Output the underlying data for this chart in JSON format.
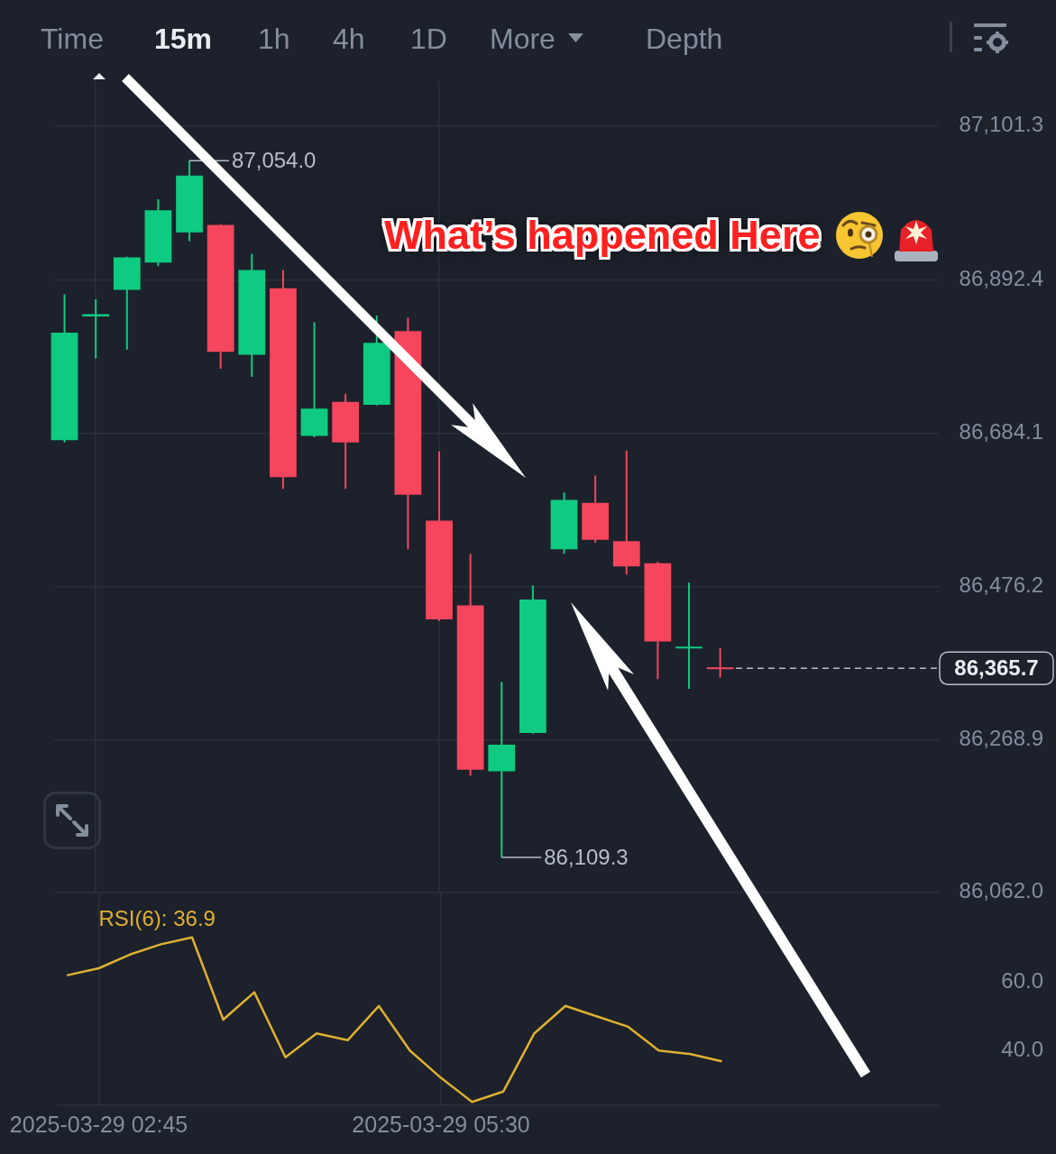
{
  "chart_data": [
    {
      "type": "other",
      "annotations": [
        "Time",
        "15m",
        "1h",
        "4h",
        "1D",
        "More",
        "Depth"
      ]
    },
    {
      "type": "candlestick",
      "x": [
        "2025-03-29T02:30",
        "2025-03-29T02:45",
        "2025-03-29T03:00",
        "2025-03-29T03:15",
        "2025-03-29T03:30",
        "2025-03-29T03:45",
        "2025-03-29T04:00",
        "2025-03-29T04:15",
        "2025-03-29T04:30",
        "2025-03-29T04:45",
        "2025-03-29T05:00",
        "2025-03-29T05:15",
        "2025-03-29T05:30",
        "2025-03-29T05:45",
        "2025-03-29T06:00",
        "2025-03-29T06:15",
        "2025-03-29T06:30",
        "2025-03-29T06:45",
        "2025-03-29T07:00",
        "2025-03-29T07:15",
        "2025-03-29T07:30",
        "2025-03-29T07:45"
      ],
      "ohlc": [
        [
          86675,
          86873,
          86672,
          86821
        ],
        [
          86843,
          86866,
          86786,
          86846
        ],
        [
          86879,
          86924,
          86798,
          86923
        ],
        [
          86916,
          87002,
          86911,
          86987
        ],
        [
          86957,
          87054.0,
          86945,
          87034
        ],
        [
          86967,
          86968,
          86772,
          86795
        ],
        [
          86791,
          86928,
          86761,
          86906
        ],
        [
          86881,
          86906,
          86609,
          86625
        ],
        [
          86681,
          86835,
          86679,
          86718
        ],
        [
          86727,
          86738,
          86609,
          86672
        ],
        [
          86723,
          86844,
          86722,
          86807
        ],
        [
          86823,
          86841,
          86527,
          86601
        ],
        [
          86566,
          86660,
          86430,
          86432
        ],
        [
          86451,
          86521,
          86220,
          86228
        ],
        [
          86226,
          86347,
          86109.3,
          86262
        ],
        [
          86278,
          86478,
          86277,
          86459
        ],
        [
          86527,
          86604,
          86521,
          86594
        ],
        [
          86590,
          86627,
          86536,
          86540
        ],
        [
          86538,
          86661,
          86493,
          86504
        ],
        [
          86508,
          86510,
          86351,
          86402
        ],
        [
          86393,
          86482,
          86338,
          86395
        ],
        [
          86367,
          86393,
          86353,
          86365.7
        ]
      ],
      "colors": [
        "#0ecb81",
        "#0ecb81",
        "#0ecb81",
        "#0ecb81",
        "#0ecb81",
        "#f6465d",
        "#0ecb81",
        "#f6465d",
        "#0ecb81",
        "#f6465d",
        "#0ecb81",
        "#f6465d",
        "#f6465d",
        "#f6465d",
        "#0ecb81",
        "#0ecb81",
        "#0ecb81",
        "#f6465d",
        "#f6465d",
        "#f6465d",
        "#0ecb81",
        "#f6465d"
      ],
      "xlim": [
        "2025-03-29T02:25",
        "2025-03-29T09:30"
      ],
      "xticks": [
        {
          "value": "2025-03-29T02:45",
          "label": null
        },
        {
          "value": "2025-03-29T05:30",
          "label": null
        }
      ],
      "ylim": [
        86062.0,
        87164
      ],
      "yticks": [
        {
          "value": 87101.3,
          "label": "87,101.3"
        },
        {
          "value": 86892.4,
          "label": "86,892.4"
        },
        {
          "value": 86684.1,
          "label": "86,684.1"
        },
        {
          "value": 86476.2,
          "label": "86,476.2"
        },
        {
          "value": 86268.9,
          "label": "86,268.9"
        },
        {
          "value": 86062.0,
          "label": "86,062.0"
        }
      ],
      "grid": true,
      "tick_labels": "y",
      "annotations": [
        "What’s happened Here",
        {
          "text": "87,054.0",
          "x": "2025-03-29T03:30",
          "y": 87054.0
        },
        {
          "text": "86,109.3",
          "x": "2025-03-29T06:00",
          "y": 86109.3
        }
      ],
      "ref_lines": [
        {
          "axis": "y",
          "value": 86365.7,
          "label": "86,365.7",
          "color": "#b7bdc6",
          "line_style": "dashed"
        }
      ]
    },
    {
      "type": "line",
      "x": [
        "2025-03-29T02:30",
        "2025-03-29T02:45",
        "2025-03-29T03:00",
        "2025-03-29T03:15",
        "2025-03-29T03:30",
        "2025-03-29T03:45",
        "2025-03-29T04:00",
        "2025-03-29T04:15",
        "2025-03-29T04:30",
        "2025-03-29T04:45",
        "2025-03-29T05:00",
        "2025-03-29T05:15",
        "2025-03-29T05:30",
        "2025-03-29T05:45",
        "2025-03-29T06:00",
        "2025-03-29T06:15",
        "2025-03-29T06:30",
        "2025-03-29T06:45",
        "2025-03-29T07:00",
        "2025-03-29T07:15",
        "2025-03-29T07:30",
        "2025-03-29T07:45"
      ],
      "series": [
        {
          "name": "RSI(6): 36.9",
          "color": "#e0b030",
          "values": [
            62,
            64,
            68,
            71,
            73,
            49,
            57,
            38,
            45,
            43,
            53,
            40,
            32,
            25,
            28,
            45,
            53,
            50,
            47,
            40,
            39,
            36.9
          ]
        }
      ],
      "xlim": [
        "2025-03-29T02:25",
        "2025-03-29T09:30"
      ],
      "xticks": [
        {
          "value": "2025-03-29T02:45",
          "label": "2025-03-29 02:45"
        },
        {
          "value": "2025-03-29T05:30",
          "label": "2025-03-29 05:30"
        }
      ],
      "ylim": [
        24,
        86
      ],
      "yticks": [
        {
          "value": 60,
          "label": "60.0"
        },
        {
          "value": 40,
          "label": "40.0"
        }
      ],
      "grid": "x",
      "legend": "top left"
    }
  ]
}
